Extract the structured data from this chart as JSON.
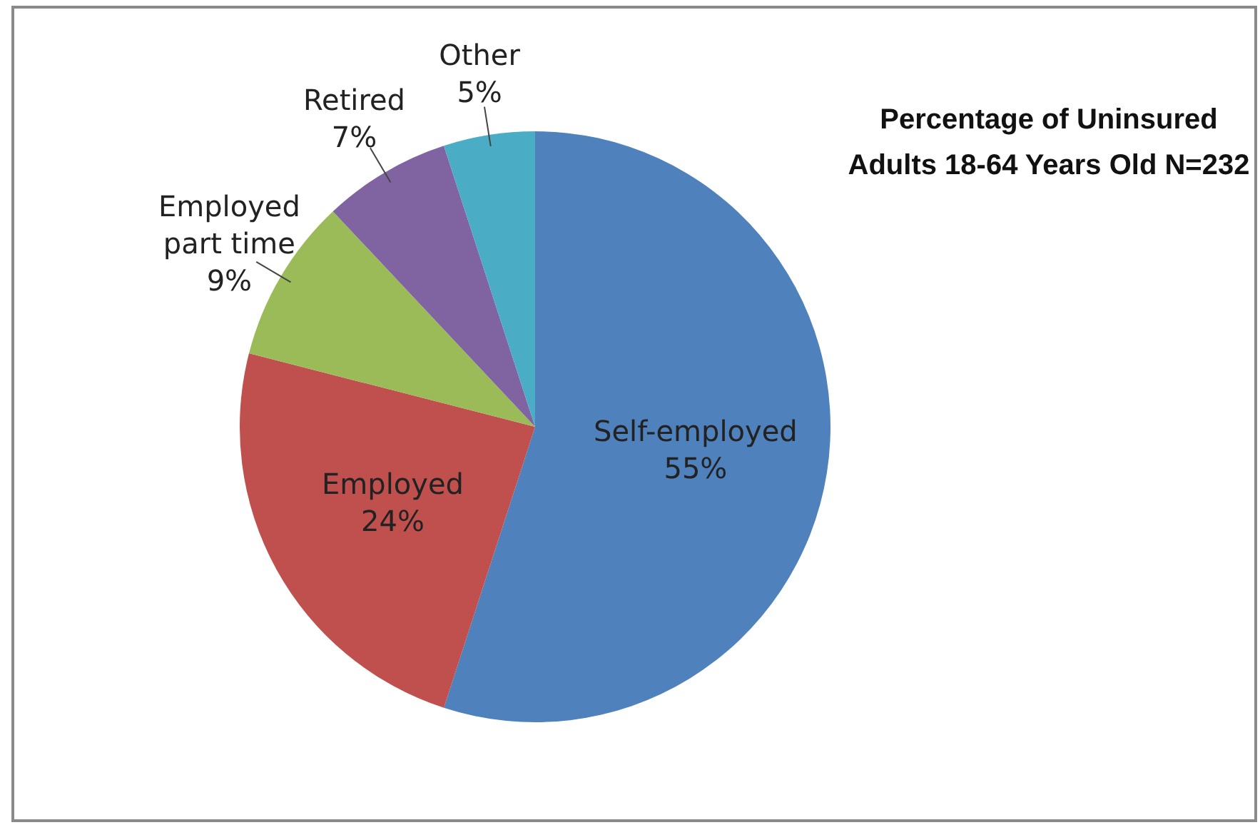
{
  "chart_data": {
    "type": "pie",
    "title": "Percentage of Uninsured Adults 18-64 Years Old N=232",
    "categories": [
      "Self-employed",
      "Employed",
      "Employed part time",
      "Retired",
      "Other"
    ],
    "values": [
      55,
      24,
      9,
      7,
      5
    ],
    "value_labels": [
      "55%",
      "24%",
      "9%",
      "7%",
      "5%"
    ],
    "colors": [
      "#4f81bd",
      "#c0504d",
      "#9bbb59",
      "#8064a2",
      "#4bacc6"
    ],
    "legend": false
  }
}
